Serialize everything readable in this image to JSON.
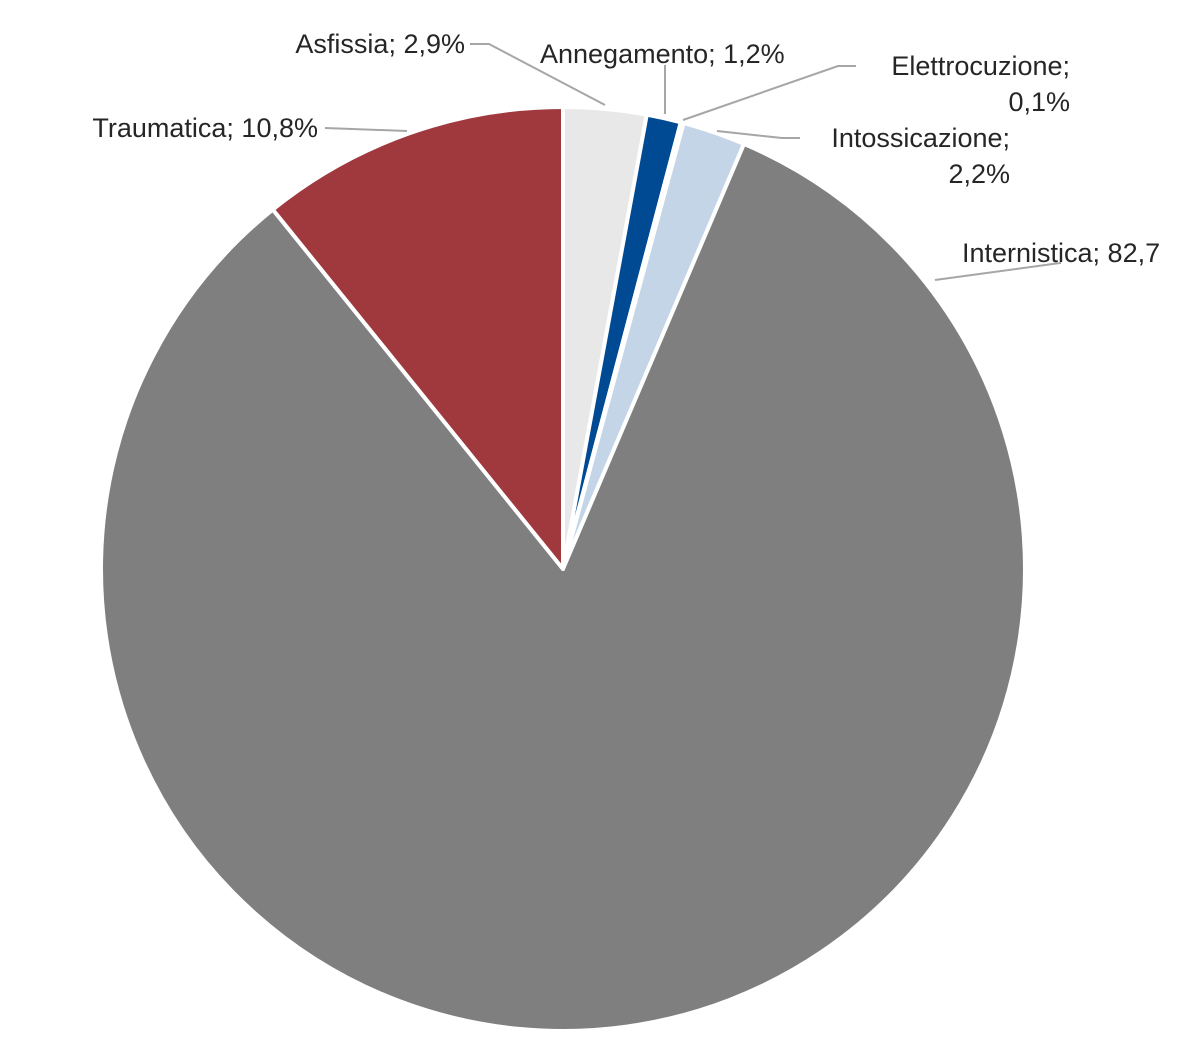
{
  "chart_data": {
    "type": "pie",
    "slices": [
      {
        "label": "Asfissia",
        "value": 2.9,
        "label_lines": [
          "Asfissia; 2,9%"
        ],
        "color": "#e8e8e8"
      },
      {
        "label": "Annegamento",
        "value": 1.2,
        "label_lines": [
          "Annegamento; 1,2%"
        ],
        "color": "#004a93"
      },
      {
        "label": "Elettrocuzione",
        "value": 0.1,
        "label_lines": [
          "Elettrocuzione;",
          "0,1%"
        ],
        "color": "#3f6fa6"
      },
      {
        "label": "Intossicazione",
        "value": 2.2,
        "label_lines": [
          "Intossicazione;",
          "2,2%"
        ],
        "color": "#c5d5e8"
      },
      {
        "label": "Internistica",
        "value": 82.7,
        "label_lines": [
          "Internistica; 82,7"
        ],
        "color": "#7f7f7f"
      },
      {
        "label": "Traumatica",
        "value": 10.8,
        "label_lines": [
          "Traumatica; 10,8%"
        ],
        "color": "#a0393e"
      }
    ],
    "start_angle": "12 o'clock",
    "direction": "clockwise",
    "legend": "none"
  }
}
